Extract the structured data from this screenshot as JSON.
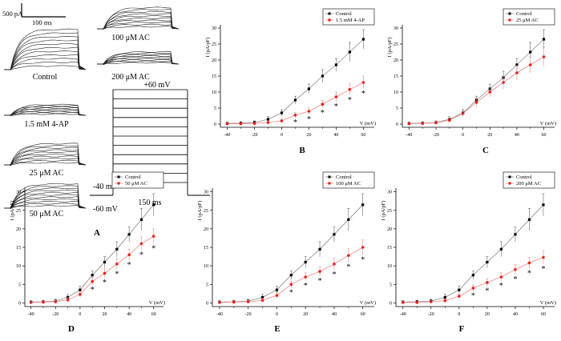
{
  "panel_a": {
    "letter": "A",
    "scale": {
      "current": "500 pA",
      "time": "100 ms"
    },
    "trace_labels": [
      "Control",
      "1.5 mM 4-AP",
      "25 μM AC",
      "50 μM AC",
      "100 μM AC",
      "200 μM AC"
    ],
    "protocol": {
      "top": "+60 mV",
      "hold1": "-40 mV",
      "hold2": "-60 mV",
      "duration": "150 ms"
    }
  },
  "chart_data": [
    {
      "panel": "B",
      "type": "line",
      "xlabel": "V (mV)",
      "ylabel": "I (pA/pF)",
      "xlim": [
        -45,
        68
      ],
      "ylim": [
        -1,
        31
      ],
      "xticks": [
        -40,
        -20,
        0,
        20,
        40,
        60
      ],
      "yticks": [
        0,
        5,
        10,
        15,
        20,
        25,
        30
      ],
      "x": [
        -40,
        -30,
        -20,
        -10,
        0,
        10,
        20,
        30,
        40,
        50,
        60
      ],
      "series": [
        {
          "name": "Control",
          "color": "#000000",
          "marker": "square",
          "values": [
            0.2,
            0.3,
            0.5,
            1.5,
            3.5,
            7.5,
            11,
            15,
            18.5,
            22.5,
            26.5
          ],
          "errors": [
            0.4,
            0.4,
            0.5,
            0.8,
            1,
            1.2,
            1.5,
            2,
            2,
            3,
            3
          ]
        },
        {
          "name": "1.5 mM 4-AP",
          "color": "#e8221c",
          "marker": "circle",
          "values": [
            0.1,
            0.1,
            0.2,
            0.5,
            1,
            2.8,
            4,
            6.2,
            8.5,
            10.8,
            13
          ],
          "errors": [
            0.3,
            0.3,
            0.3,
            0.5,
            0.6,
            0.8,
            1,
            1.2,
            1.5,
            1.8,
            2
          ]
        }
      ],
      "sig_x": [
        10,
        20,
        30,
        40,
        50,
        60
      ],
      "significance": "*",
      "legend_position": "top-right"
    },
    {
      "panel": "C",
      "type": "line",
      "xlabel": "V (mV)",
      "ylabel": "I (pA/pF)",
      "xlim": [
        -45,
        68
      ],
      "ylim": [
        -1,
        31
      ],
      "xticks": [
        -40,
        -20,
        0,
        20,
        40,
        60
      ],
      "yticks": [
        0,
        5,
        10,
        15,
        20,
        25,
        30
      ],
      "x": [
        -40,
        -30,
        -20,
        -10,
        0,
        10,
        20,
        30,
        40,
        50,
        60
      ],
      "series": [
        {
          "name": "Control",
          "color": "#000000",
          "marker": "square",
          "values": [
            0.2,
            0.3,
            0.5,
            1.5,
            3.5,
            7.5,
            11,
            14.5,
            18.5,
            22.5,
            26.5
          ],
          "errors": [
            0.4,
            0.4,
            0.5,
            0.8,
            1,
            1.2,
            1.5,
            2,
            2,
            3,
            3
          ]
        },
        {
          "name": "25 μM AC",
          "color": "#e8221c",
          "marker": "circle",
          "values": [
            0.1,
            0.2,
            0.4,
            1.2,
            3.3,
            6.8,
            10,
            13,
            16,
            18.5,
            21
          ],
          "errors": [
            0.3,
            0.3,
            0.4,
            0.7,
            1,
            1.2,
            1.5,
            2,
            2.2,
            2.5,
            3
          ]
        }
      ],
      "sig_x": [],
      "significance": "*",
      "legend_position": "top-right"
    },
    {
      "panel": "D",
      "type": "line",
      "xlabel": "V (mV)",
      "ylabel": "I (pA/pF)",
      "xlim": [
        -45,
        68
      ],
      "ylim": [
        -1,
        31
      ],
      "xticks": [
        -40,
        -20,
        0,
        20,
        40,
        60
      ],
      "yticks": [
        0,
        5,
        10,
        15,
        20,
        25,
        30
      ],
      "x": [
        -40,
        -30,
        -20,
        -10,
        0,
        10,
        20,
        30,
        40,
        50,
        60
      ],
      "series": [
        {
          "name": "Control",
          "color": "#000000",
          "marker": "square",
          "values": [
            0.2,
            0.3,
            0.5,
            1.5,
            3.5,
            7.5,
            11,
            14.5,
            18.5,
            22.5,
            26.5
          ],
          "errors": [
            0.4,
            0.4,
            0.5,
            0.8,
            1,
            1.2,
            1.5,
            2,
            2,
            3,
            3
          ]
        },
        {
          "name": "50 μM AC",
          "color": "#e8221c",
          "marker": "circle",
          "values": [
            0.1,
            0.2,
            0.3,
            0.8,
            2.3,
            5.8,
            8,
            10.5,
            13,
            16,
            18
          ],
          "errors": [
            0.3,
            0.3,
            0.4,
            0.6,
            0.8,
            1,
            1.2,
            1.4,
            1.5,
            1.8,
            2
          ]
        }
      ],
      "sig_x": [
        10,
        20,
        30,
        40,
        50,
        60
      ],
      "significance": "*",
      "legend_position": "top-right"
    },
    {
      "panel": "E",
      "type": "line",
      "xlabel": "V (mV)",
      "ylabel": "I (pA/pF)",
      "xlim": [
        -45,
        68
      ],
      "ylim": [
        -1,
        31
      ],
      "xticks": [
        -40,
        -20,
        0,
        20,
        40,
        60
      ],
      "yticks": [
        0,
        5,
        10,
        15,
        20,
        25,
        30
      ],
      "x": [
        -40,
        -30,
        -20,
        -10,
        0,
        10,
        20,
        30,
        40,
        50,
        60
      ],
      "series": [
        {
          "name": "Control",
          "color": "#000000",
          "marker": "square",
          "values": [
            0.2,
            0.3,
            0.5,
            1.5,
            3.5,
            7.5,
            11,
            14.5,
            18.5,
            22.5,
            26.5
          ],
          "errors": [
            0.4,
            0.4,
            0.5,
            0.8,
            1,
            1.2,
            1.5,
            2,
            2,
            3,
            3
          ]
        },
        {
          "name": "100 μM AC",
          "color": "#e8221c",
          "marker": "circle",
          "values": [
            0.1,
            0.2,
            0.3,
            0.7,
            2,
            5,
            7,
            8.5,
            10.5,
            12.8,
            15
          ],
          "errors": [
            0.3,
            0.3,
            0.4,
            0.5,
            0.7,
            0.9,
            1.1,
            1.3,
            1.5,
            1.8,
            2
          ]
        }
      ],
      "sig_x": [
        10,
        20,
        30,
        40,
        50,
        60
      ],
      "significance": "*",
      "legend_position": "top-right"
    },
    {
      "panel": "F",
      "type": "line",
      "xlabel": "V (mV)",
      "ylabel": "I (pA/pF)",
      "xlim": [
        -45,
        68
      ],
      "ylim": [
        -1,
        31
      ],
      "xticks": [
        -40,
        -20,
        0,
        20,
        40,
        60
      ],
      "yticks": [
        0,
        5,
        10,
        15,
        20,
        25,
        30
      ],
      "x": [
        -40,
        -30,
        -20,
        -10,
        0,
        10,
        20,
        30,
        40,
        50,
        60
      ],
      "series": [
        {
          "name": "Control",
          "color": "#000000",
          "marker": "square",
          "values": [
            0.2,
            0.3,
            0.5,
            1.5,
            3.5,
            7.5,
            11,
            14.5,
            18.5,
            22.5,
            26.5
          ],
          "errors": [
            0.4,
            0.4,
            0.5,
            0.8,
            1,
            1.2,
            1.5,
            2,
            2,
            3,
            3
          ]
        },
        {
          "name": "200 μM AC",
          "color": "#e8221c",
          "marker": "circle",
          "values": [
            0.1,
            0.1,
            0.3,
            0.6,
            1.8,
            4,
            5.5,
            7,
            9,
            10.8,
            12.3
          ],
          "errors": [
            0.3,
            0.3,
            0.3,
            0.5,
            0.6,
            0.8,
            1,
            1.1,
            1.3,
            1.5,
            1.8
          ]
        }
      ],
      "sig_x": [
        10,
        20,
        30,
        40,
        50,
        60
      ],
      "significance": "*",
      "legend_position": "top-right"
    }
  ]
}
